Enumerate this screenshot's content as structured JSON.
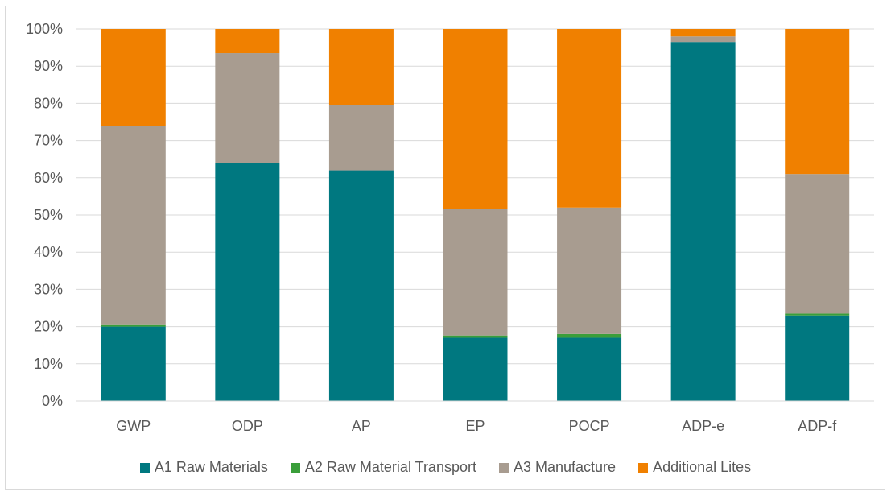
{
  "chart_data": {
    "type": "bar",
    "stacked": true,
    "percent": true,
    "categories": [
      "GWP",
      "ODP",
      "AP",
      "EP",
      "POCP",
      "ADP-e",
      "ADP-f"
    ],
    "series": [
      {
        "name": "A1 Raw Materials",
        "color": "#007880",
        "values": [
          20,
          64,
          62,
          17,
          17,
          96.5,
          23
        ]
      },
      {
        "name": "A2 Raw Material Transport",
        "color": "#3a9e3a",
        "values": [
          0.4,
          0,
          0,
          0.6,
          1,
          0,
          0.5
        ]
      },
      {
        "name": "A3 Manufacture",
        "color": "#a89c90",
        "values": [
          53.5,
          29.5,
          17.5,
          34,
          34,
          1.5,
          37.5
        ]
      },
      {
        "name": "Additional Lites",
        "color": "#f08000",
        "values": [
          26.1,
          6.5,
          20.5,
          48.4,
          48,
          2,
          39
        ]
      }
    ],
    "yticks": [
      "0%",
      "10%",
      "20%",
      "30%",
      "40%",
      "50%",
      "60%",
      "70%",
      "80%",
      "90%",
      "100%"
    ],
    "ylim": [
      0,
      100
    ],
    "grid": true,
    "legend_position": "bottom"
  }
}
